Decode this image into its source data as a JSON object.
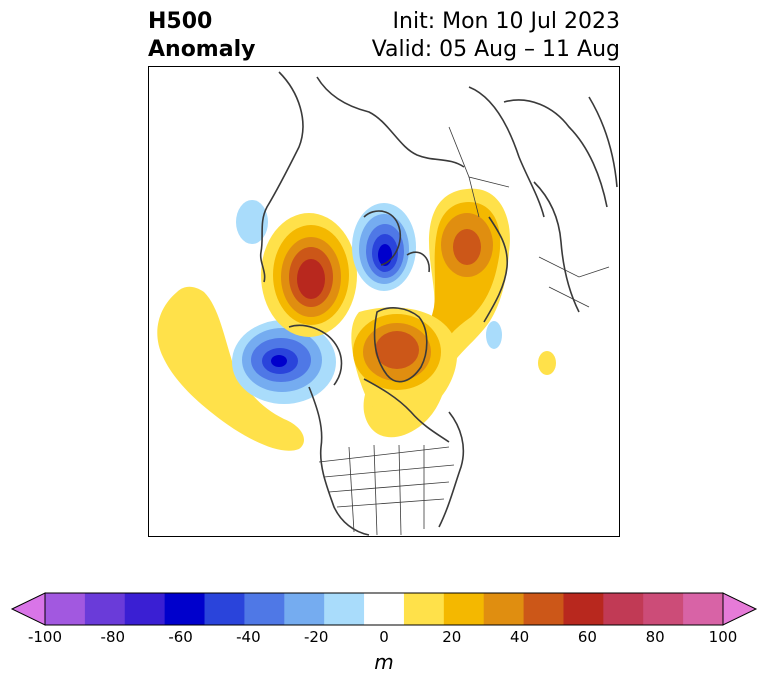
{
  "title": {
    "left_line1": "H500",
    "left_line2": "Anomaly",
    "right_line1": "Init: Mon 10 Jul 2023",
    "right_line2": "Valid: 05 Aug – 11 Aug"
  },
  "colorbar": {
    "ticks": [
      "-100",
      "-80",
      "-60",
      "-40",
      "-20",
      "0",
      "20",
      "40",
      "60",
      "80",
      "100"
    ],
    "unit": "m",
    "colors": [
      "#d975e8",
      "#a258e0",
      "#6a3bd9",
      "#3a1fd3",
      "#0000cc",
      "#2a44db",
      "#4f78e6",
      "#75acf0",
      "#a9dcfb",
      "#ffffff",
      "#ffe14a",
      "#f4b800",
      "#e08e10",
      "#cc5718",
      "#b8281e",
      "#c13a55",
      "#cc4c78",
      "#d863a6",
      "#e67bd8"
    ]
  },
  "map": {
    "anomalies": [
      {
        "kind": "negative",
        "region": "Arctic / Greenland",
        "peak": "-60"
      },
      {
        "kind": "negative",
        "region": "Gulf of Alaska",
        "peak": "-50"
      },
      {
        "kind": "positive",
        "region": "Scandinavia / N Europe",
        "peak": "50"
      },
      {
        "kind": "positive",
        "region": "Eastern Siberia",
        "peak": "60"
      },
      {
        "kind": "positive",
        "region": "Hudson Bay / Canada",
        "peak": "50"
      },
      {
        "kind": "positive",
        "region": "North Pacific",
        "peak": "20"
      }
    ]
  }
}
